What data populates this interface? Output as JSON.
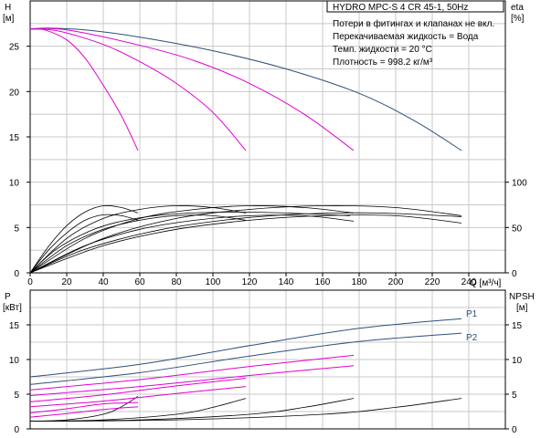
{
  "chart_data": {
    "type": "line",
    "title": "HYDRO MPC-S 4 CR 45-1, 50Hz",
    "notes": [
      "Потери в фитингах и клапанах не вкл.",
      "Перекачиваемая жидкость = Вода",
      "Темп. жидкости = 20 °C",
      "Плотность = 998.2 кг/м³"
    ],
    "xlabel": "Q [м³/ч]",
    "xlim": [
      0,
      260
    ],
    "xticks": [
      0,
      20,
      40,
      60,
      80,
      100,
      120,
      140,
      160,
      180,
      200,
      220,
      240
    ],
    "grid": true,
    "colors": {
      "system": "#2d4f7a",
      "single": "#e000d0",
      "eta": "#000000",
      "npsh": "#000000"
    },
    "top": {
      "ylabel_left": [
        "H",
        "[м]"
      ],
      "ylabel_right": [
        "eta",
        "[%]"
      ],
      "ylim_left": [
        0,
        30
      ],
      "yticks_left": [
        0,
        5,
        10,
        15,
        20,
        25
      ],
      "ylim_right": [
        0,
        300
      ],
      "yticks_right": [
        0,
        50,
        100
      ],
      "head_series": [
        {
          "kind": "system",
          "points": [
            [
              0,
              26.9
            ],
            [
              10,
              27.0
            ],
            [
              30,
              26.8
            ],
            [
              60,
              26.0
            ],
            [
              100,
              24.5
            ],
            [
              140,
              22.5
            ],
            [
              180,
              19.8
            ],
            [
              210,
              16.8
            ],
            [
              236,
              13.5
            ]
          ]
        },
        {
          "kind": "single",
          "points": [
            [
              0,
              26.9
            ],
            [
              8,
              26.8
            ],
            [
              20,
              25.7
            ],
            [
              30,
              23.7
            ],
            [
              40,
              20.7
            ],
            [
              50,
              17.3
            ],
            [
              59,
              13.5
            ]
          ]
        },
        {
          "kind": "single",
          "points": [
            [
              0,
              26.9
            ],
            [
              15,
              26.7
            ],
            [
              40,
              25.2
            ],
            [
              60,
              23.3
            ],
            [
              80,
              20.9
            ],
            [
              100,
              17.7
            ],
            [
              118,
              13.5
            ]
          ]
        },
        {
          "kind": "single",
          "points": [
            [
              0,
              26.9
            ],
            [
              20,
              26.8
            ],
            [
              60,
              25.1
            ],
            [
              90,
              23.4
            ],
            [
              120,
              20.9
            ],
            [
              150,
              17.5
            ],
            [
              177,
              13.5
            ]
          ]
        }
      ],
      "eta_series": [
        {
          "points": [
            [
              0,
              0
            ],
            [
              10,
              29
            ],
            [
              20,
              52
            ],
            [
              30,
              67
            ],
            [
              40,
              74
            ],
            [
              50,
              72
            ],
            [
              59,
              66
            ]
          ]
        },
        {
          "points": [
            [
              0,
              0
            ],
            [
              20,
              38
            ],
            [
              40,
              60
            ],
            [
              60,
              70
            ],
            [
              80,
              74
            ],
            [
              100,
              72
            ],
            [
              118,
              66
            ]
          ]
        },
        {
          "points": [
            [
              0,
              0
            ],
            [
              30,
              38
            ],
            [
              60,
              60
            ],
            [
              90,
              70
            ],
            [
              120,
              74
            ],
            [
              150,
              72
            ],
            [
              177,
              66
            ]
          ]
        },
        {
          "points": [
            [
              0,
              0
            ],
            [
              40,
              38
            ],
            [
              80,
              60
            ],
            [
              120,
              70
            ],
            [
              160,
              74
            ],
            [
              200,
              72
            ],
            [
              236,
              63
            ]
          ]
        },
        {
          "points": [
            [
              0,
              0
            ],
            [
              10,
              25
            ],
            [
              20,
              44
            ],
            [
              30,
              58
            ],
            [
              40,
              64
            ],
            [
              50,
              63
            ],
            [
              59,
              58
            ]
          ]
        },
        {
          "points": [
            [
              0,
              0
            ],
            [
              20,
              30
            ],
            [
              40,
              48
            ],
            [
              60,
              58
            ],
            [
              80,
              63
            ],
            [
              100,
              63
            ],
            [
              118,
              58
            ]
          ]
        },
        {
          "points": [
            [
              0,
              0
            ],
            [
              30,
              30
            ],
            [
              60,
              48
            ],
            [
              90,
              58
            ],
            [
              120,
              63
            ],
            [
              150,
              63
            ],
            [
              177,
              57
            ]
          ]
        },
        {
          "points": [
            [
              0,
              0
            ],
            [
              40,
              30
            ],
            [
              80,
              48
            ],
            [
              120,
              58
            ],
            [
              160,
              63
            ],
            [
              200,
              63
            ],
            [
              236,
              55
            ]
          ]
        },
        {
          "points": [
            [
              0,
              0
            ],
            [
              15,
              27
            ],
            [
              35,
              48
            ],
            [
              55,
              59
            ],
            [
              80,
              65
            ],
            [
              110,
              67
            ],
            [
              140,
              66
            ],
            [
              175,
              63
            ]
          ]
        },
        {
          "points": [
            [
              0,
              0
            ],
            [
              30,
              26
            ],
            [
              70,
              47
            ],
            [
              110,
              59
            ],
            [
              150,
              65
            ],
            [
              190,
              66
            ],
            [
              236,
              62
            ]
          ]
        }
      ]
    },
    "bottom": {
      "ylabel_left": [
        "P",
        "[кВт]"
      ],
      "ylabel_right": [
        "NPSH",
        "[м]"
      ],
      "ylim_left": [
        0,
        20
      ],
      "yticks_left": [
        0,
        5,
        10,
        15
      ],
      "ylim_right": [
        0,
        20
      ],
      "yticks_right": [
        0,
        5,
        10,
        15
      ],
      "power_series": [
        {
          "name": "P1",
          "kind": "system",
          "points": [
            [
              0,
              7.5
            ],
            [
              60,
              9.3
            ],
            [
              120,
              12.0
            ],
            [
              180,
              14.5
            ],
            [
              236,
              15.9
            ]
          ]
        },
        {
          "name": "P2",
          "kind": "system",
          "points": [
            [
              0,
              6.4
            ],
            [
              60,
              8.1
            ],
            [
              120,
              10.5
            ],
            [
              180,
              12.6
            ],
            [
              236,
              13.8
            ]
          ]
        },
        {
          "kind": "single",
          "points": [
            [
              0,
              5.6
            ],
            [
              60,
              7.1
            ],
            [
              120,
              9.0
            ],
            [
              177,
              10.6
            ]
          ]
        },
        {
          "kind": "single",
          "points": [
            [
              0,
              4.8
            ],
            [
              60,
              6.1
            ],
            [
              120,
              7.7
            ],
            [
              177,
              9.1
            ]
          ]
        },
        {
          "kind": "single",
          "points": [
            [
              0,
              3.9
            ],
            [
              40,
              4.9
            ],
            [
              80,
              6.2
            ],
            [
              118,
              7.3
            ]
          ]
        },
        {
          "kind": "single",
          "points": [
            [
              0,
              3.2
            ],
            [
              40,
              4.0
            ],
            [
              80,
              5.1
            ],
            [
              118,
              6.1
            ]
          ]
        },
        {
          "kind": "single",
          "points": [
            [
              0,
              2.3
            ],
            [
              20,
              2.9
            ],
            [
              40,
              3.6
            ],
            [
              59,
              3.8
            ]
          ]
        },
        {
          "kind": "single",
          "points": [
            [
              0,
              1.7
            ],
            [
              20,
              2.2
            ],
            [
              40,
              2.8
            ],
            [
              59,
              3.2
            ]
          ]
        }
      ],
      "npsh_series": [
        {
          "points": [
            [
              0,
              1.1
            ],
            [
              20,
              1.3
            ],
            [
              40,
              2.1
            ],
            [
              50,
              3.2
            ],
            [
              59,
              4.7
            ]
          ]
        },
        {
          "points": [
            [
              0,
              1.1
            ],
            [
              40,
              1.3
            ],
            [
              80,
              2.1
            ],
            [
              100,
              3.1
            ],
            [
              118,
              4.4
            ]
          ]
        },
        {
          "points": [
            [
              0,
              1.1
            ],
            [
              60,
              1.3
            ],
            [
              120,
              2.1
            ],
            [
              150,
              3.1
            ],
            [
              177,
              4.4
            ]
          ]
        },
        {
          "points": [
            [
              0,
              1.1
            ],
            [
              80,
              1.3
            ],
            [
              160,
              2.1
            ],
            [
              200,
              3.1
            ],
            [
              236,
              4.4
            ]
          ]
        }
      ]
    }
  }
}
